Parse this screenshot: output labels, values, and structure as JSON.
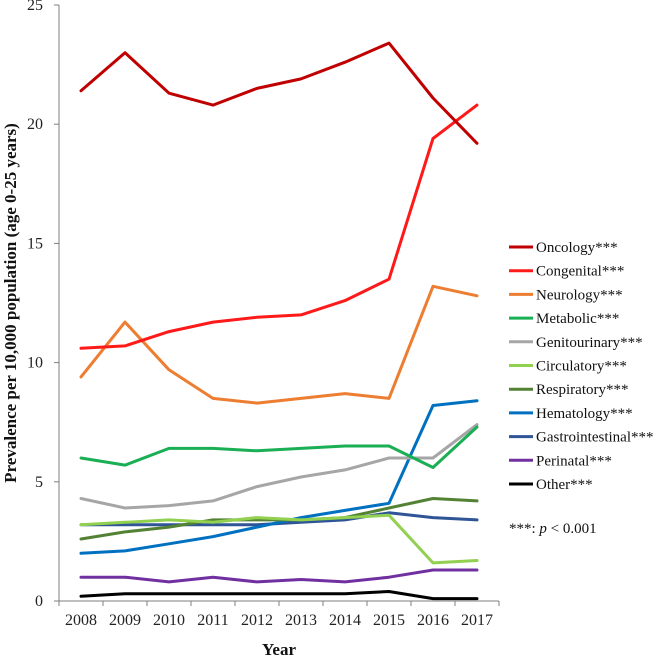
{
  "chart_data": {
    "type": "line",
    "title": "",
    "xlabel": "Year",
    "ylabel": "Prevalence per 10,000 population (age 0-25 years)",
    "ylim": [
      0,
      25
    ],
    "yticks": [
      "0",
      "5",
      "10",
      "15",
      "20",
      "25"
    ],
    "categories": [
      "2008",
      "2009",
      "2010",
      "2011",
      "2012",
      "2013",
      "2014",
      "2015",
      "2016",
      "2017"
    ],
    "grid": false,
    "legend_position": "right",
    "legend_note": {
      "prefix": "***: ",
      "variable": "p",
      "suffix": " < 0.001"
    },
    "series": [
      {
        "name": "Oncology***",
        "color": "#C00000",
        "values": [
          21.4,
          23.0,
          21.3,
          20.8,
          21.5,
          21.9,
          22.6,
          23.4,
          21.1,
          19.2
        ]
      },
      {
        "name": "Congenital***",
        "color": "#FF1A1A",
        "values": [
          10.6,
          10.7,
          11.3,
          11.7,
          11.9,
          12.0,
          12.6,
          13.5,
          19.4,
          20.8
        ]
      },
      {
        "name": "Neurology***",
        "color": "#ED7D31",
        "values": [
          9.4,
          11.7,
          9.7,
          8.5,
          8.3,
          8.5,
          8.7,
          8.5,
          13.2,
          12.8
        ]
      },
      {
        "name": "Metabolic***",
        "color": "#1AAF54",
        "values": [
          6.0,
          5.7,
          6.4,
          6.4,
          6.3,
          6.4,
          6.5,
          6.5,
          5.6,
          7.3
        ]
      },
      {
        "name": "Genitourinary***",
        "color": "#A6A6A6",
        "values": [
          4.3,
          3.9,
          4.0,
          4.2,
          4.8,
          5.2,
          5.5,
          6.0,
          6.0,
          7.4
        ]
      },
      {
        "name": "Circulatory***",
        "color": "#92D050",
        "values": [
          3.2,
          3.3,
          3.4,
          3.3,
          3.5,
          3.4,
          3.5,
          3.6,
          1.6,
          1.7
        ]
      },
      {
        "name": "Respiratory***",
        "color": "#548235",
        "values": [
          2.6,
          2.9,
          3.1,
          3.4,
          3.4,
          3.4,
          3.5,
          3.9,
          4.3,
          4.2
        ]
      },
      {
        "name": "Hematology***",
        "color": "#0070C0",
        "values": [
          2.0,
          2.1,
          2.4,
          2.7,
          3.1,
          3.5,
          3.8,
          4.1,
          8.2,
          8.4
        ]
      },
      {
        "name": "Gastrointestinal***",
        "color": "#2F5597",
        "values": [
          3.2,
          3.2,
          3.2,
          3.2,
          3.2,
          3.3,
          3.4,
          3.7,
          3.5,
          3.4
        ]
      },
      {
        "name": "Perinatal***",
        "color": "#7030A0",
        "values": [
          1.0,
          1.0,
          0.8,
          1.0,
          0.8,
          0.9,
          0.8,
          1.0,
          1.3,
          1.3
        ]
      },
      {
        "name": "Other***",
        "color": "#000000",
        "values": [
          0.2,
          0.3,
          0.3,
          0.3,
          0.3,
          0.3,
          0.3,
          0.4,
          0.1,
          0.1
        ]
      }
    ]
  }
}
